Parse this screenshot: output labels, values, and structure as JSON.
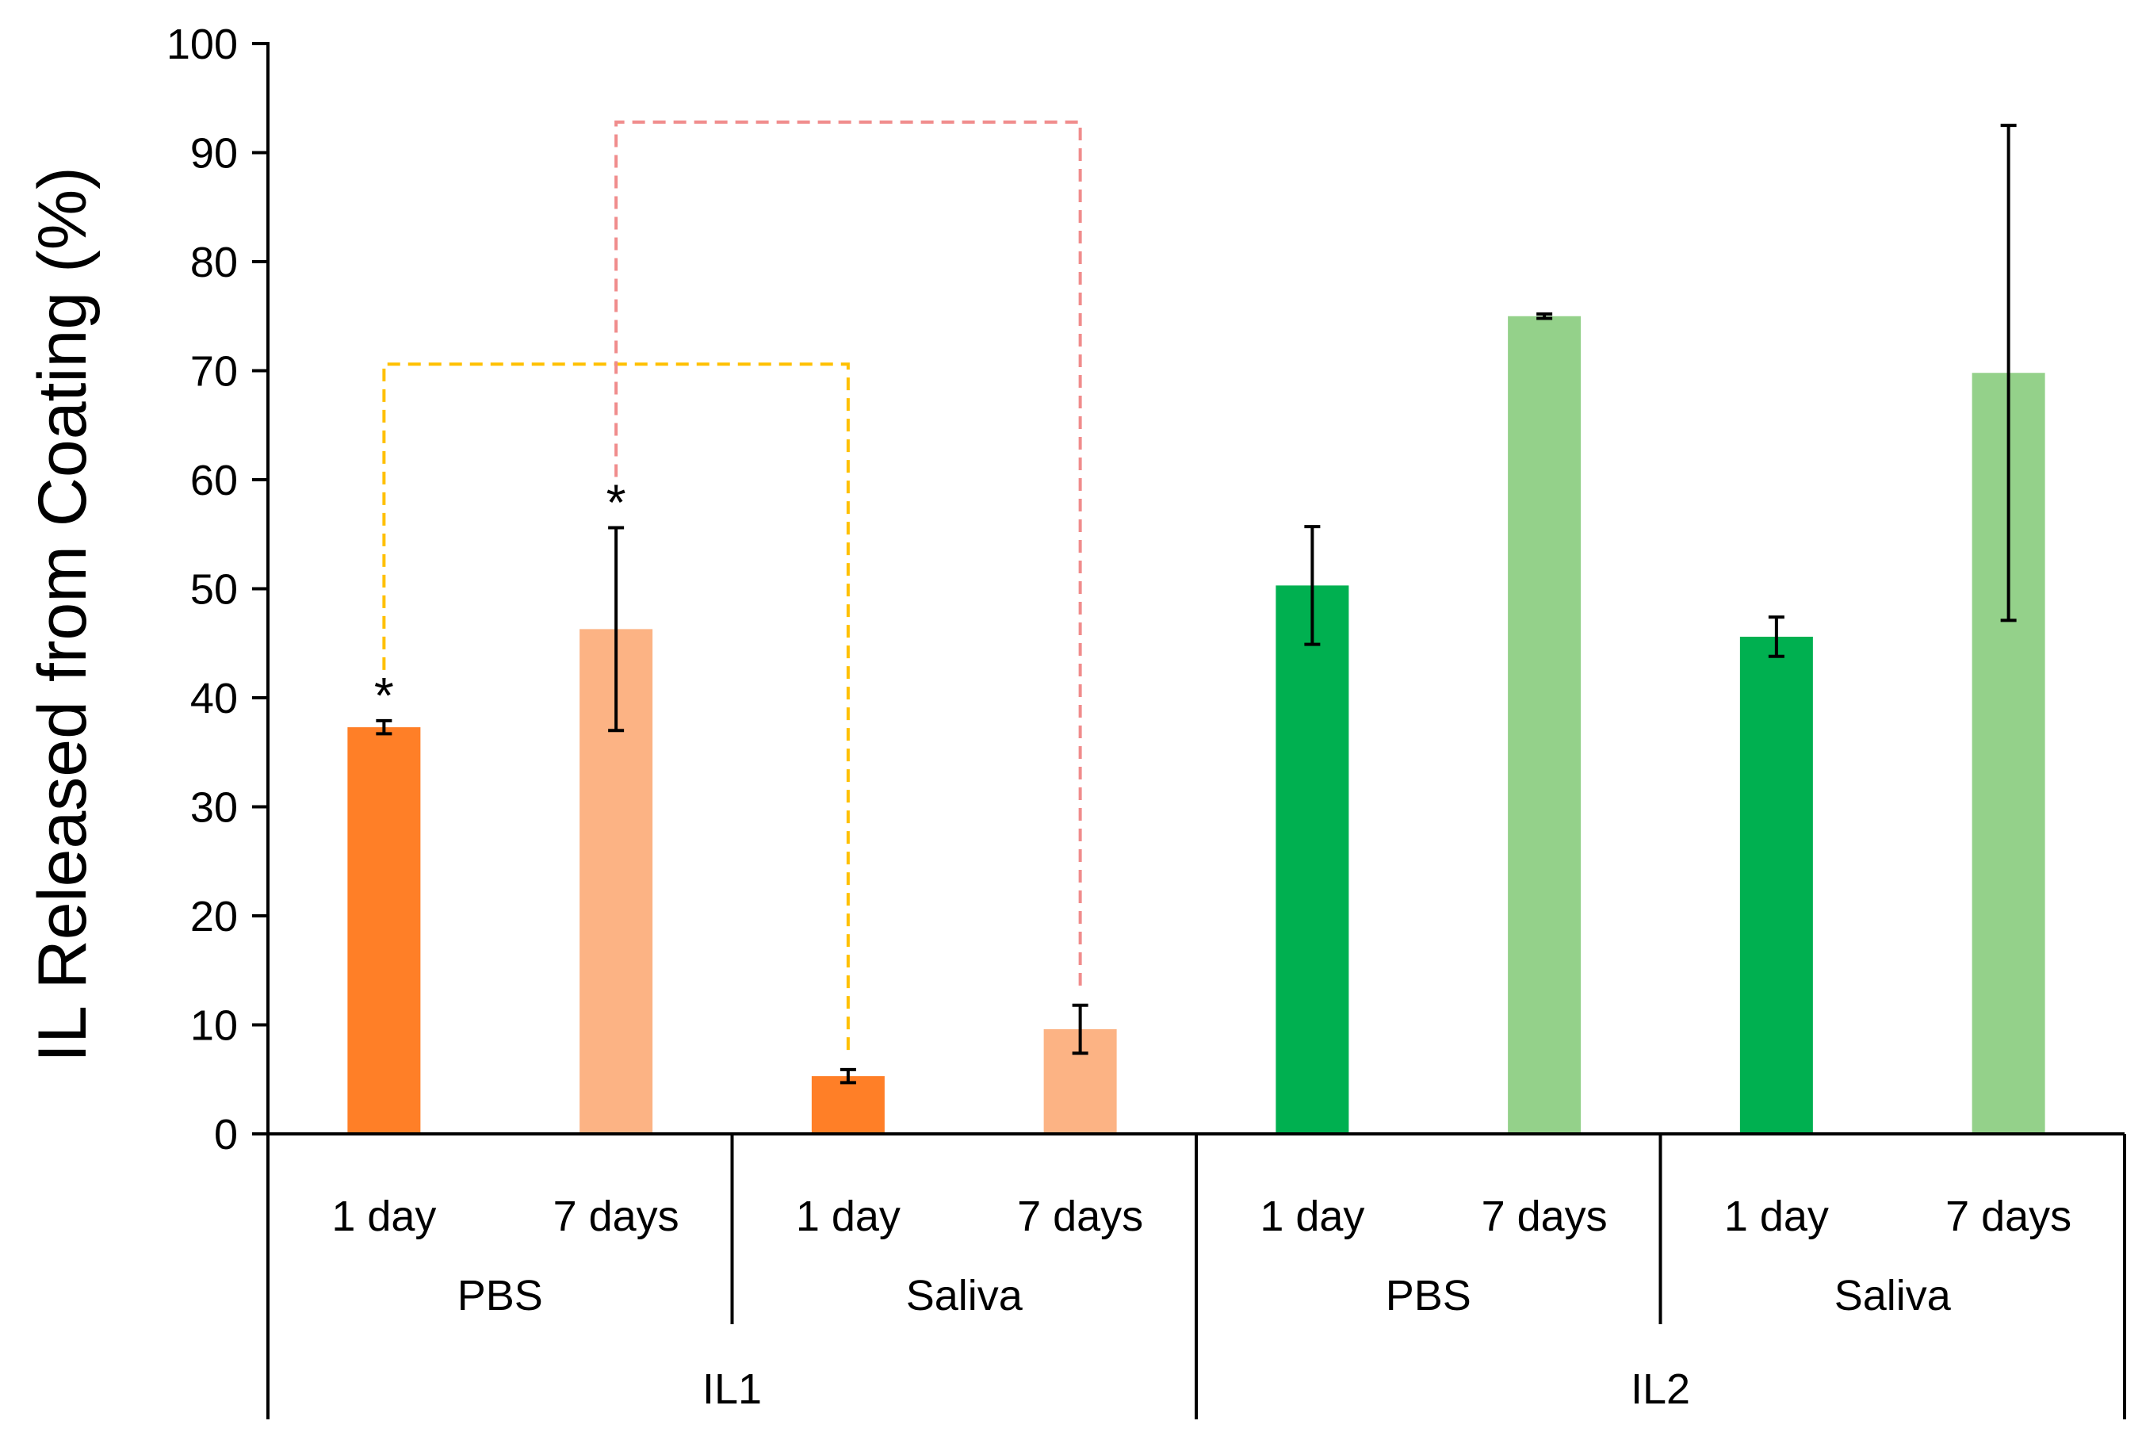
{
  "chart_data": {
    "type": "bar",
    "title": "",
    "ylabel": "IL Released from Coating (%)",
    "xlabel": "",
    "ylim": [
      0,
      100
    ],
    "yticks": [
      0,
      10,
      20,
      30,
      40,
      50,
      60,
      70,
      80,
      90,
      100
    ],
    "grid": false,
    "legend": "none",
    "categories": [
      "1 day",
      "7 days",
      "1 day",
      "7 days",
      "1 day",
      "7 days",
      "1 day",
      "7 days"
    ],
    "media": [
      "PBS",
      "Saliva",
      "PBS",
      "Saliva"
    ],
    "ionic_liquids": [
      "IL1",
      "IL2"
    ],
    "bars": [
      {
        "label": "1 day",
        "group": "IL1 PBS",
        "value": 37.3,
        "error": 0.6,
        "color": "#FF7F27",
        "star": "*"
      },
      {
        "label": "7 days",
        "group": "IL1 PBS",
        "value": 46.3,
        "error": 9.3,
        "color": "#FCB384",
        "star": "*"
      },
      {
        "label": "1 day",
        "group": "IL1 Saliva",
        "value": 5.3,
        "error": 0.6,
        "color": "#FF7F27",
        "star": ""
      },
      {
        "label": "7 days",
        "group": "IL1 Saliva",
        "value": 9.6,
        "error": 2.2,
        "color": "#FCB384",
        "star": ""
      },
      {
        "label": "1 day",
        "group": "IL2 PBS",
        "value": 50.3,
        "error": 5.4,
        "color": "#00B050",
        "star": ""
      },
      {
        "label": "7 days",
        "group": "IL2 PBS",
        "value": 75.0,
        "error": 0.2,
        "color": "#94D18A",
        "star": ""
      },
      {
        "label": "1 day",
        "group": "IL2 Saliva",
        "value": 45.6,
        "error": 1.8,
        "color": "#00B050",
        "star": ""
      },
      {
        "label": "7 days",
        "group": "IL2 Saliva",
        "value": 69.8,
        "error": 22.7,
        "color": "#94D18A",
        "star": ""
      }
    ],
    "significance_brackets": [
      {
        "from_bar": 0,
        "to_bar": 2,
        "level": 70.6,
        "color": "#FFC000"
      },
      {
        "from_bar": 1,
        "to_bar": 3,
        "level": 92.8,
        "color": "#F08C8C"
      }
    ]
  }
}
